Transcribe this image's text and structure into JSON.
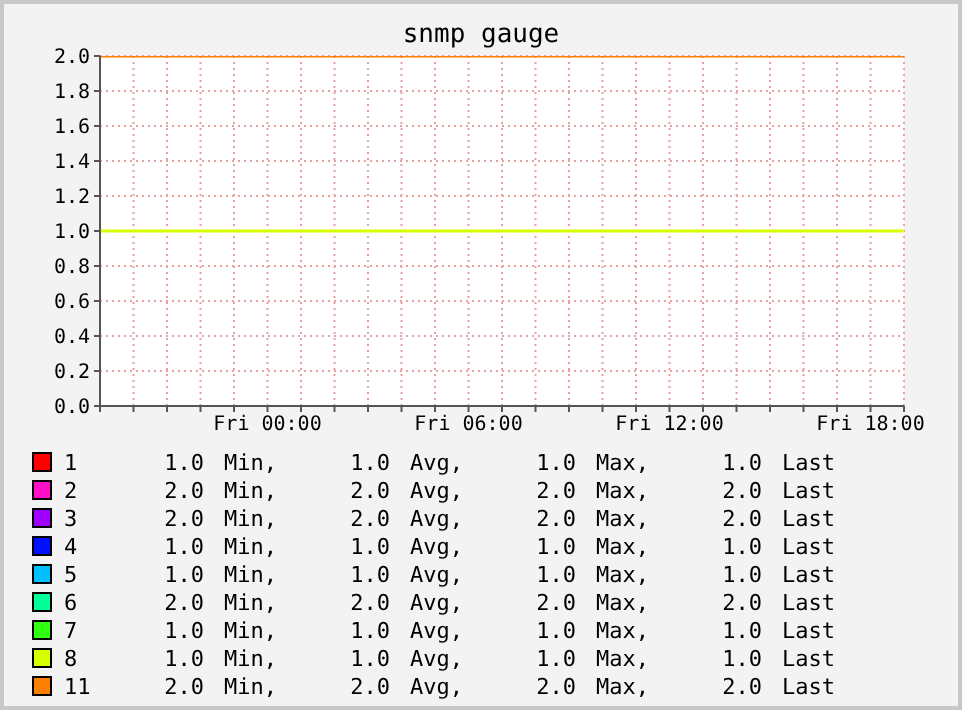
{
  "chart_data": {
    "type": "line",
    "title": "snmp gauge",
    "categories": [
      null,
      null,
      null,
      null,
      null,
      "Fri 00:00",
      null,
      null,
      null,
      null,
      null,
      "Fri 06:00",
      null,
      null,
      null,
      null,
      null,
      "Fri 12:00",
      null,
      null,
      null,
      null,
      null,
      "Fri 18:00",
      null
    ],
    "ylim": [
      0,
      2
    ],
    "yticks": [
      {
        "value": 0,
        "label": "0.0"
      },
      {
        "value": 0.2,
        "label": "0.2"
      },
      {
        "value": 0.4,
        "label": "0.4"
      },
      {
        "value": 0.6,
        "label": "0.6"
      },
      {
        "value": 0.8,
        "label": "0.8"
      },
      {
        "value": 1,
        "label": "1.0"
      },
      {
        "value": 1.2,
        "label": "1.2"
      },
      {
        "value": 1.4,
        "label": "1.4"
      },
      {
        "value": 1.6,
        "label": "1.6"
      },
      {
        "value": 1.8,
        "label": "1.8"
      },
      {
        "value": 2,
        "label": "2.0"
      }
    ],
    "grid": true,
    "legend": "bottom",
    "annotations": [
      "1.0 Min, 1.0 Avg, 1.0 Max, 1.0 Last",
      "2.0 Min, 2.0 Avg, 2.0 Max, 2.0 Last",
      "2.0 Min, 2.0 Avg, 2.0 Max, 2.0 Last",
      "1.0 Min, 1.0 Avg, 1.0 Max, 1.0 Last",
      "1.0 Min, 1.0 Avg, 1.0 Max, 1.0 Last",
      "2.0 Min, 2.0 Avg, 2.0 Max, 2.0 Last",
      "1.0 Min, 1.0 Avg, 1.0 Max, 1.0 Last",
      "1.0 Min, 1.0 Avg, 1.0 Max, 1.0 Last",
      "2.0 Min, 2.0 Avg, 2.0 Max, 2.0 Last"
    ],
    "series": [
      {
        "name": "1",
        "color": "#ff0000",
        "values": [
          null,
          null,
          null,
          null,
          null,
          null,
          null,
          null,
          null,
          null,
          null,
          null,
          null,
          null,
          null,
          null,
          null,
          null,
          null,
          null,
          null,
          null,
          null,
          null,
          null
        ]
      },
      {
        "name": "2",
        "color": "#ff10c8",
        "values": [
          null,
          null,
          null,
          null,
          null,
          null,
          null,
          null,
          null,
          null,
          null,
          null,
          null,
          null,
          null,
          null,
          null,
          null,
          null,
          null,
          null,
          null,
          null,
          null,
          null
        ]
      },
      {
        "name": "3",
        "color": "#a000ff",
        "values": [
          null,
          null,
          null,
          null,
          null,
          null,
          null,
          null,
          null,
          null,
          null,
          null,
          null,
          null,
          null,
          null,
          null,
          null,
          null,
          null,
          null,
          null,
          null,
          null,
          null
        ]
      },
      {
        "name": "4",
        "color": "#0010ff",
        "values": [
          null,
          null,
          null,
          null,
          null,
          null,
          null,
          null,
          null,
          null,
          null,
          null,
          null,
          null,
          null,
          null,
          null,
          null,
          null,
          null,
          null,
          null,
          null,
          null,
          null
        ]
      },
      {
        "name": "5",
        "color": "#00c0ff",
        "values": [
          null,
          null,
          null,
          null,
          null,
          null,
          null,
          null,
          null,
          null,
          null,
          null,
          null,
          null,
          null,
          null,
          null,
          null,
          null,
          null,
          null,
          null,
          null,
          null,
          null
        ]
      },
      {
        "name": "6",
        "color": "#00ff99",
        "values": [
          null,
          null,
          null,
          null,
          null,
          null,
          null,
          null,
          null,
          null,
          null,
          null,
          null,
          null,
          null,
          null,
          null,
          null,
          null,
          null,
          null,
          null,
          null,
          null,
          null
        ]
      },
      {
        "name": "7",
        "color": "#30ff10",
        "values": [
          null,
          null,
          null,
          null,
          null,
          null,
          null,
          null,
          null,
          null,
          null,
          null,
          null,
          null,
          null,
          null,
          null,
          null,
          null,
          null,
          null,
          null,
          null,
          null,
          null
        ]
      },
      {
        "name": "8",
        "color": "#d8ff00",
        "values": [
          1,
          1,
          1,
          1,
          1,
          1,
          1,
          1,
          1,
          1,
          1,
          1,
          1,
          1,
          1,
          1,
          1,
          1,
          1,
          1,
          1,
          1,
          1,
          1,
          1
        ]
      },
      {
        "name": "11",
        "color": "#ff8000",
        "values": [
          2,
          2,
          2,
          2,
          2,
          2,
          2,
          2,
          2,
          2,
          2,
          2,
          2,
          2,
          2,
          2,
          2,
          2,
          2,
          2,
          2,
          2,
          2,
          2,
          2
        ]
      }
    ]
  }
}
